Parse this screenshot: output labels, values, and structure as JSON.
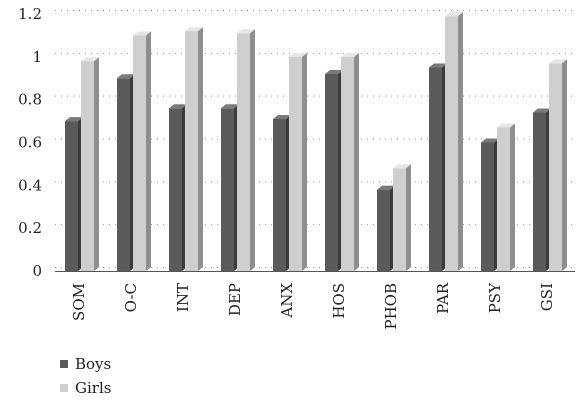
{
  "chart_data": {
    "type": "bar",
    "categories": [
      "SOM",
      "O-C",
      "INT",
      "DEP",
      "ANX",
      "HOS",
      "PHOB",
      "PAR",
      "PSY",
      "GSI"
    ],
    "series": [
      {
        "name": "Boys",
        "values": [
          0.7,
          0.9,
          0.76,
          0.76,
          0.71,
          0.92,
          0.38,
          0.95,
          0.6,
          0.74
        ]
      },
      {
        "name": "Girls",
        "values": [
          0.98,
          1.1,
          1.12,
          1.11,
          1.0,
          1.0,
          0.48,
          1.19,
          0.67,
          0.97
        ]
      }
    ],
    "yticks": [
      "0",
      "0.2",
      "0.4",
      "0.6",
      "0.8",
      "1",
      "1.2"
    ],
    "ylim": [
      0,
      1.2
    ],
    "grid": true,
    "legend_position": "bottom-left",
    "colors": {
      "boys_front": "#5b5b5b",
      "boys_side": "#3c3c3c",
      "boys_top": "#7a7a7a",
      "girls_front": "#cfcfcf",
      "girls_side": "#8e8e8e",
      "girls_top": "#e6e6e6"
    },
    "title": "",
    "xlabel": "",
    "ylabel": ""
  }
}
